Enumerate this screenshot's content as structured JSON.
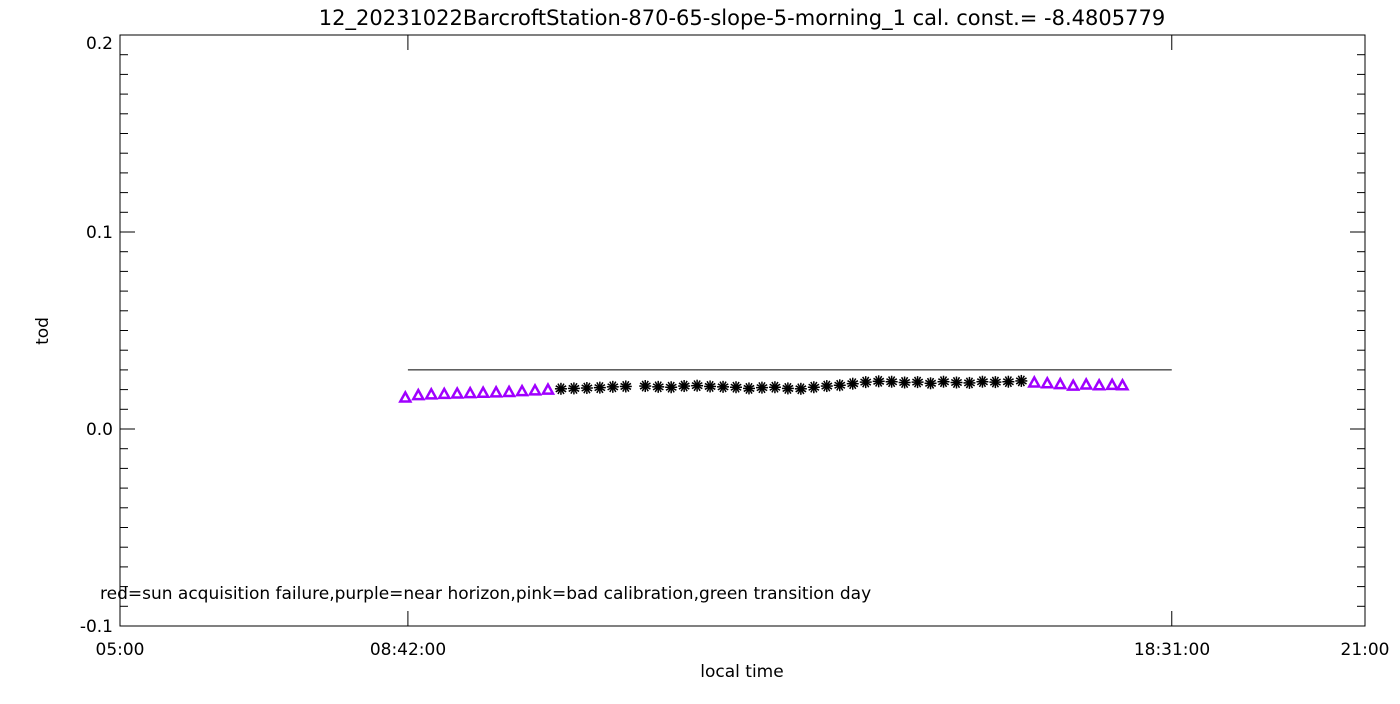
{
  "chart_data": {
    "type": "scatter",
    "title": "12_20231022BarcroftStation-870-65-slope-5-morning_1 cal. const.= -8.4805779",
    "xlabel": "local time",
    "ylabel": "tod",
    "xlim": [
      "05:00",
      "21:00"
    ],
    "ylim": [
      -0.1,
      0.2
    ],
    "x_ticks": [
      "05:00",
      "08:42:00",
      "18:31:00",
      "21:00"
    ],
    "y_ticks": [
      "-0.1",
      "0.0",
      "0.1",
      "0.2"
    ],
    "grid": false,
    "reference_line": {
      "y": 0.03,
      "x_start": "08:42",
      "x_end": "18:31",
      "color": "#000000"
    },
    "annotation": "red=sun acquisition failure,purple=near horizon,pink=bad calibration,green transition day",
    "series": [
      {
        "marker": "triangle",
        "color": "#a000ff",
        "x": [
          "08:40",
          "08:50",
          "09:00",
          "09:10",
          "09:20",
          "09:30",
          "09:40",
          "09:50",
          "10:00",
          "10:10",
          "10:20",
          "10:30"
        ],
        "y": [
          0.016,
          0.0172,
          0.0176,
          0.0178,
          0.018,
          0.0182,
          0.0184,
          0.0186,
          0.0188,
          0.0192,
          0.0196,
          0.02
        ]
      },
      {
        "marker": "asterisk",
        "color": "#000000",
        "x": [
          "10:40",
          "10:50",
          "11:00",
          "11:10",
          "11:20",
          "11:30",
          "11:45",
          "11:55",
          "12:05",
          "12:15",
          "12:25",
          "12:35",
          "12:45",
          "12:55",
          "13:05",
          "13:15",
          "13:25",
          "13:35",
          "13:45",
          "13:55",
          "14:05",
          "14:15",
          "14:25",
          "14:35",
          "14:45",
          "14:55",
          "15:05",
          "15:15",
          "15:25",
          "15:35",
          "15:45",
          "15:55",
          "16:05",
          "16:15",
          "16:25",
          "16:35"
        ],
        "y": [
          0.0204,
          0.0206,
          0.0208,
          0.021,
          0.0214,
          0.0216,
          0.0218,
          0.0214,
          0.0212,
          0.0218,
          0.022,
          0.0216,
          0.0214,
          0.0212,
          0.0206,
          0.021,
          0.0212,
          0.0206,
          0.0204,
          0.0212,
          0.0218,
          0.0222,
          0.023,
          0.0238,
          0.0242,
          0.024,
          0.0236,
          0.0238,
          0.0232,
          0.024,
          0.0236,
          0.0234,
          0.024,
          0.0238,
          0.024,
          0.0244
        ]
      },
      {
        "marker": "triangle",
        "color": "#a000ff",
        "x": [
          "16:45",
          "16:55",
          "17:05",
          "17:15",
          "17:25",
          "17:35",
          "17:45",
          "17:53"
        ],
        "y": [
          0.0236,
          0.0232,
          0.0228,
          0.022,
          0.0226,
          0.0222,
          0.0224,
          0.0222
        ]
      }
    ]
  }
}
